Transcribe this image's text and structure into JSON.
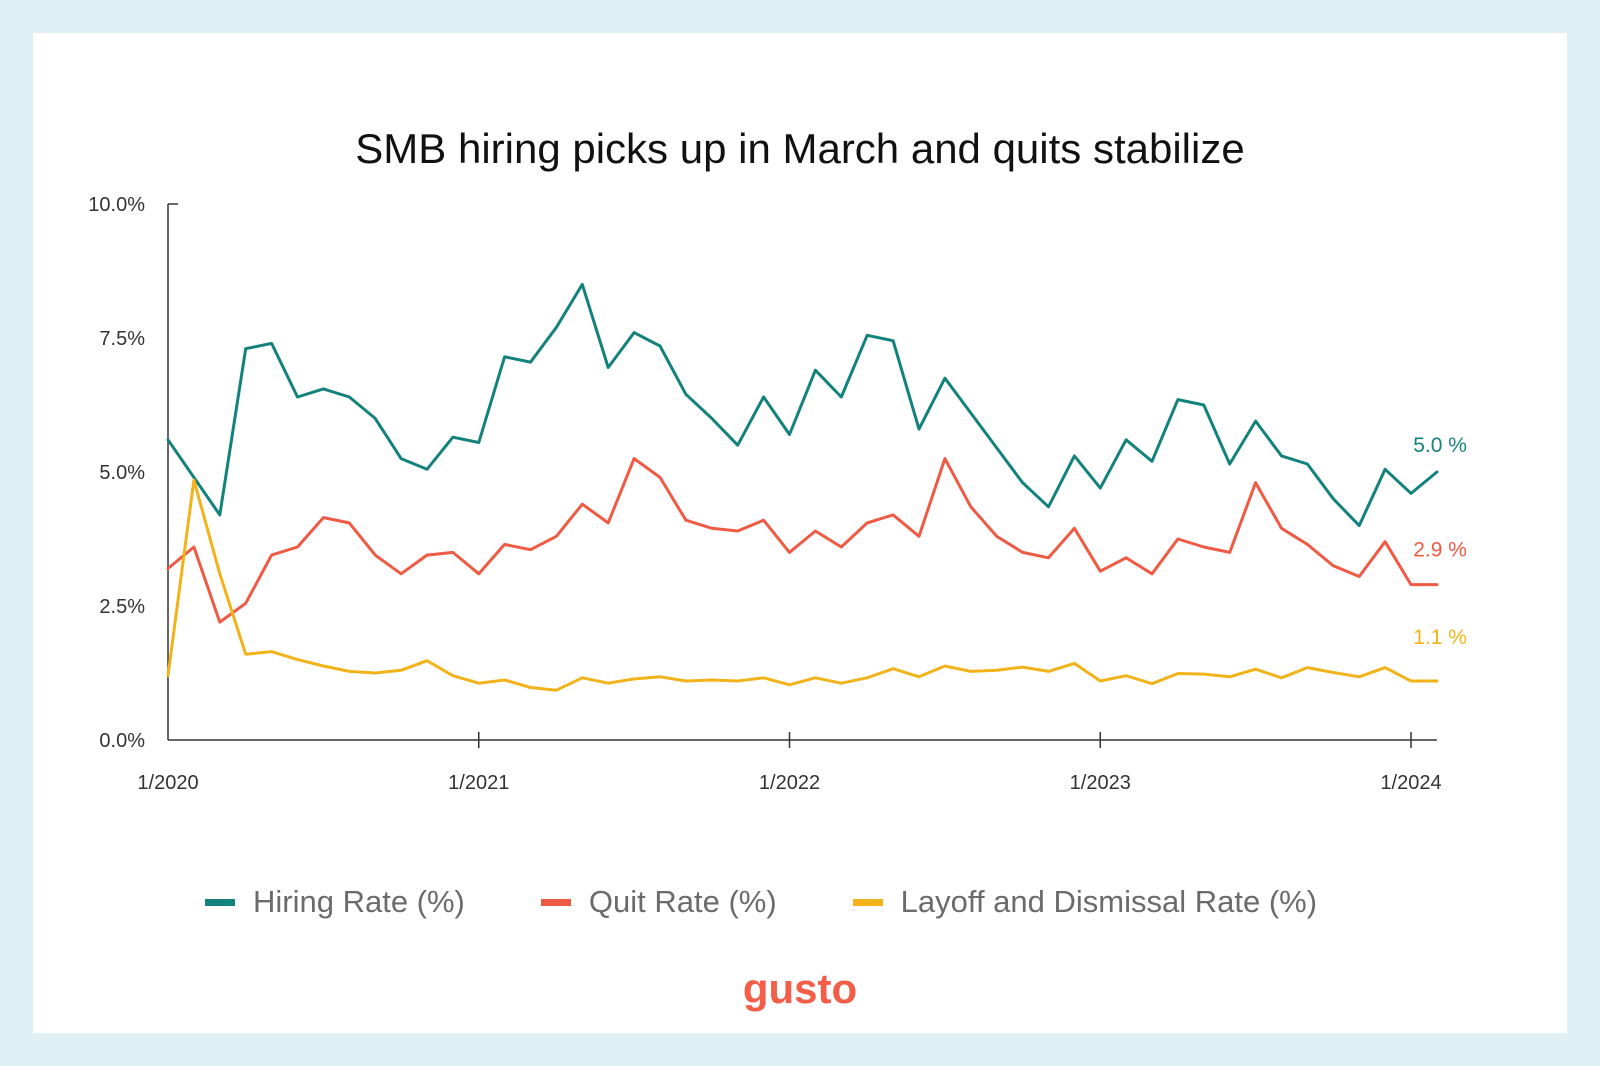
{
  "title": "SMB hiring picks up in March and quits stabilize",
  "brand": {
    "logo_text": "gusto",
    "color": "#f45d48"
  },
  "chart_data": {
    "type": "line",
    "title": "SMB hiring picks up in March and quits stabilize",
    "xlabel": "",
    "ylabel": "",
    "x_start": "1/2020",
    "x_ticks": [
      "1/2020",
      "1/2021",
      "1/2022",
      "1/2023",
      "1/2024"
    ],
    "y_ticks": [
      "0.0%",
      "2.5%",
      "5.0%",
      "7.5%",
      "10.0%"
    ],
    "ylim": [
      0,
      10
    ],
    "legend_position": "bottom",
    "grid": false,
    "series": [
      {
        "name": "Hiring Rate (%)",
        "color": "#14827c",
        "end_label": "5.0 %",
        "values": [
          5.6,
          4.9,
          4.2,
          7.3,
          7.4,
          6.4,
          6.55,
          6.4,
          6.0,
          5.25,
          5.05,
          5.65,
          5.55,
          7.15,
          7.05,
          7.7,
          8.5,
          6.95,
          7.6,
          7.35,
          6.45,
          6.0,
          5.5,
          6.4,
          5.7,
          6.9,
          6.4,
          7.55,
          7.45,
          5.8,
          6.75,
          6.1,
          5.45,
          4.8,
          4.35,
          5.3,
          4.7,
          5.6,
          5.2,
          6.35,
          6.25,
          5.15,
          5.95,
          5.3,
          5.15,
          4.5,
          4.0,
          5.05,
          4.6,
          5.0
        ]
      },
      {
        "name": "Quit Rate (%)",
        "color": "#ef5a44",
        "end_label": "2.9 %",
        "values": [
          3.2,
          3.6,
          2.2,
          2.55,
          3.45,
          3.6,
          4.15,
          4.05,
          3.45,
          3.1,
          3.45,
          3.5,
          3.1,
          3.65,
          3.55,
          3.8,
          4.4,
          4.05,
          5.25,
          4.9,
          4.1,
          3.95,
          3.9,
          4.1,
          3.5,
          3.9,
          3.6,
          4.05,
          4.2,
          3.8,
          5.25,
          4.35,
          3.8,
          3.5,
          3.4,
          3.95,
          3.15,
          3.4,
          3.1,
          3.75,
          3.6,
          3.5,
          4.8,
          3.95,
          3.65,
          3.25,
          3.05,
          3.7,
          2.9,
          2.9
        ]
      },
      {
        "name": "Layoff and Dismissal Rate (%)",
        "color": "#f2b31a",
        "end_label": "1.1 %",
        "values": [
          1.2,
          4.85,
          3.1,
          1.6,
          1.65,
          1.5,
          1.38,
          1.28,
          1.25,
          1.3,
          1.48,
          1.2,
          1.06,
          1.12,
          0.98,
          0.93,
          1.16,
          1.06,
          1.14,
          1.18,
          1.1,
          1.12,
          1.1,
          1.16,
          1.03,
          1.16,
          1.06,
          1.16,
          1.33,
          1.18,
          1.38,
          1.28,
          1.3,
          1.36,
          1.28,
          1.43,
          1.1,
          1.2,
          1.05,
          1.24,
          1.23,
          1.18,
          1.32,
          1.16,
          1.35,
          1.26,
          1.18,
          1.35,
          1.1,
          1.1
        ]
      }
    ]
  }
}
